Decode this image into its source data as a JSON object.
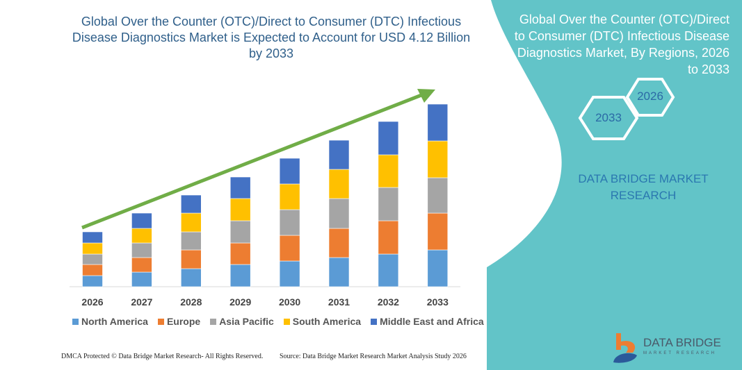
{
  "title": "Global Over the Counter (OTC)/Direct to Consumer (DTC) Infectious Disease Diagnostics Market is Expected to Account for USD 4.12 Billion by 2033",
  "side_panel": {
    "title": "Global Over the Counter (OTC)/Direct to Consumer (DTC) Infectious Disease Diagnostics Market, By Regions, 2026 to 2033",
    "hex_start": "2026",
    "hex_end": "2033",
    "brand": "DATA BRIDGE MARKET RESEARCH",
    "logo_text": "DATA BRIDGE",
    "logo_sub": "MARKET RESEARCH",
    "panel_color": "#62c4c8"
  },
  "footer": {
    "left": "DMCA Protected © Data Bridge Market Research- All Rights Reserved.",
    "right": "Source: Data Bridge Market Research  Market Analysis Study 2026"
  },
  "chart_data": {
    "type": "bar",
    "stacked": true,
    "title": "Global Over the Counter (OTC)/Direct to Consumer (DTC) Infectious Disease Diagnostics Market is Expected to Account for USD 4.12 Billion by 2033",
    "categories": [
      "2026",
      "2027",
      "2028",
      "2029",
      "2030",
      "2031",
      "2032",
      "2033"
    ],
    "series": [
      {
        "name": "North America",
        "color": "#5b9bd5",
        "values": [
          16,
          21,
          26,
          32,
          37,
          42,
          47,
          53
        ]
      },
      {
        "name": "Europe",
        "color": "#ed7d31",
        "values": [
          16,
          21,
          27,
          31,
          37,
          42,
          48,
          53
        ]
      },
      {
        "name": "Asia Pacific",
        "color": "#a5a5a5",
        "values": [
          15,
          21,
          26,
          32,
          37,
          43,
          48,
          51
        ]
      },
      {
        "name": "South America",
        "color": "#ffc000",
        "values": [
          16,
          21,
          27,
          32,
          37,
          42,
          47,
          53
        ]
      },
      {
        "name": "Middle East and Africa",
        "color": "#4472c4",
        "values": [
          16,
          22,
          26,
          31,
          37,
          42,
          48,
          53
        ]
      }
    ],
    "y_axis_shown": false,
    "grid": false,
    "legend": "bottom",
    "trend_arrow_color": "#70ad47"
  }
}
